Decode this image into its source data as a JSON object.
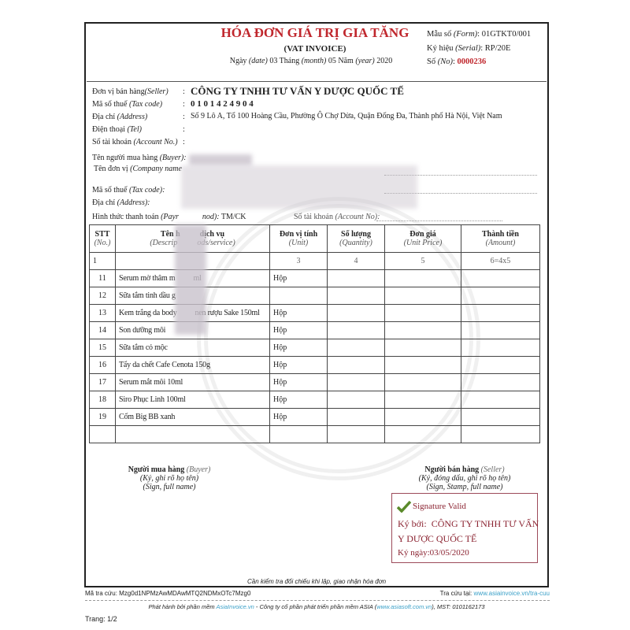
{
  "header": {
    "title": "HÓA ĐƠN GIÁ TRỊ GIA TĂNG",
    "subtitle": "(VAT INVOICE)",
    "date_prefix": "Ngày",
    "date_en": "(date)",
    "day": "03",
    "month_label": "Tháng",
    "month_en": "(month)",
    "month": "05",
    "year_label": "Năm",
    "year_en": "(year)",
    "year": "2020",
    "form_label": "Mẫu số",
    "form_en": "(Form)",
    "form_value": ": 01GTKT0/001",
    "serial_label": "Ký hiệu",
    "serial_en": "(Serial)",
    "serial_value": ": RP/20E",
    "no_label": "Số",
    "no_en": "(No)",
    "no_value": "0000236"
  },
  "seller": {
    "name_label": "Đơn vị bán hàng",
    "name_en": "(Seller)",
    "name": "CÔNG TY TNHH TƯ VẤN Y DƯỢC QUỐC TẾ",
    "tax_label": "Mã số thuế",
    "tax_en": "(Tax code)",
    "tax": "0 1 0 1 4 2 4 9 0 4",
    "addr_label": "Địa chỉ",
    "addr_en": "(Address)",
    "addr": "Số 9 Lô A, Tổ 100 Hoàng Cầu, Phường Ô Chợ Dừa, Quận Đống Đa, Thành phố Hà Nội, Việt Nam",
    "tel_label": "Điện thoại",
    "tel_en": "(Tel)",
    "acc_label": "Số tài khoản",
    "acc_en": "(Account No.)"
  },
  "buyer": {
    "buyer_label": "Tên người mua hàng",
    "buyer_en": "(Buyer):",
    "company_label": "Tên đơn vị",
    "company_en": "(Company name",
    "tax_label": "Mã số thuế",
    "tax_en": "(Tax code):",
    "addr_label": "Địa chỉ",
    "addr_en": "(Address):",
    "pay_label": "Hình thức thanh toán",
    "pay_en": "(Payr",
    "pay_en2": "nod):",
    "pay_value": "TM/CK",
    "acc_label": "Số tài khoản",
    "acc_en": "(Account No):"
  },
  "table": {
    "headers": [
      {
        "vi": "STT",
        "en": "(No.)"
      },
      {
        "vi": "Tên h          dịch vụ",
        "en": "(Descrip          ods/service)"
      },
      {
        "vi": "Đơn vị tính",
        "en": "(Unit)"
      },
      {
        "vi": "Số lượng",
        "en": "(Quantity)"
      },
      {
        "vi": "Đơn giá",
        "en": "(Unit Price)"
      },
      {
        "vi": "Thành tiền",
        "en": "(Amount)"
      }
    ],
    "index_row": [
      "1",
      "",
      "3",
      "4",
      "5",
      "6=4x5"
    ],
    "rows": [
      {
        "no": "11",
        "desc": "Serum mờ thâm m          ml",
        "unit": "Hộp"
      },
      {
        "no": "12",
        "desc": "Sữa tắm tinh dầu g",
        "unit": ""
      },
      {
        "no": "13",
        "desc": "Kem trắng da body          nen rượu Sake 150ml",
        "unit": "Hộp"
      },
      {
        "no": "14",
        "desc": "Son dưỡng môi",
        "unit": "Hộp"
      },
      {
        "no": "15",
        "desc": "Sữa tắm cỏ mộc",
        "unit": "Hộp"
      },
      {
        "no": "16",
        "desc": "Tẩy da chết Cafe Cenota 150g",
        "unit": "Hộp"
      },
      {
        "no": "17",
        "desc": "Serum mắt môi 10ml",
        "unit": "Hộp"
      },
      {
        "no": "18",
        "desc": "Siro Phục Linh 100ml",
        "unit": "Hộp"
      },
      {
        "no": "19",
        "desc": "Cốm Big BB xanh",
        "unit": "Hộp"
      }
    ]
  },
  "signatures": {
    "buyer_title": "Người mua hàng",
    "buyer_en": "(Buyer)",
    "buyer_l1": "(Ký, ghi rõ họ tên)",
    "buyer_l2": "(Sign, full name)",
    "seller_title": "Người bán hàng",
    "seller_en": "(Seller)",
    "seller_l1": "(Ký, đóng dấu, ghi rõ họ tên)",
    "seller_l2": "(Sign, Stamp, full name)",
    "valid": "Signature Valid",
    "signed_by_label": "Ký bởi:",
    "signed_by_1": "CÔNG TY TNHH TƯ VẤN",
    "signed_by_2": "Y DƯỢC QUỐC TẾ",
    "signed_date": "Ký ngày:03/05/2020"
  },
  "footer": {
    "check_note": "Cần kiểm tra đối chiếu khi lập, giao nhận hóa đơn",
    "lookup_code": "Mã tra cứu: Mzg0d1NPMzAwMDAwMTQ2NDMxOTc7Mzg0",
    "lookup_at": "Tra cứu tại:",
    "lookup_url": "www.asiainvoice.vn/tra-cuu",
    "issued_prefix": "Phát hành bởi phần mềm",
    "issued_link": "AsiaInvoice.vn",
    "issued_mid": "- Công ty cổ phần phát triển phần mềm ASIA (",
    "issued_link2": "www.asiasoft.com.vn",
    "issued_end": "), MST: 0101162173",
    "page": "Trang: 1/2"
  },
  "colors": {
    "accent": "#c0272d",
    "signature": "#8b2331",
    "link": "#3aa0c8"
  }
}
